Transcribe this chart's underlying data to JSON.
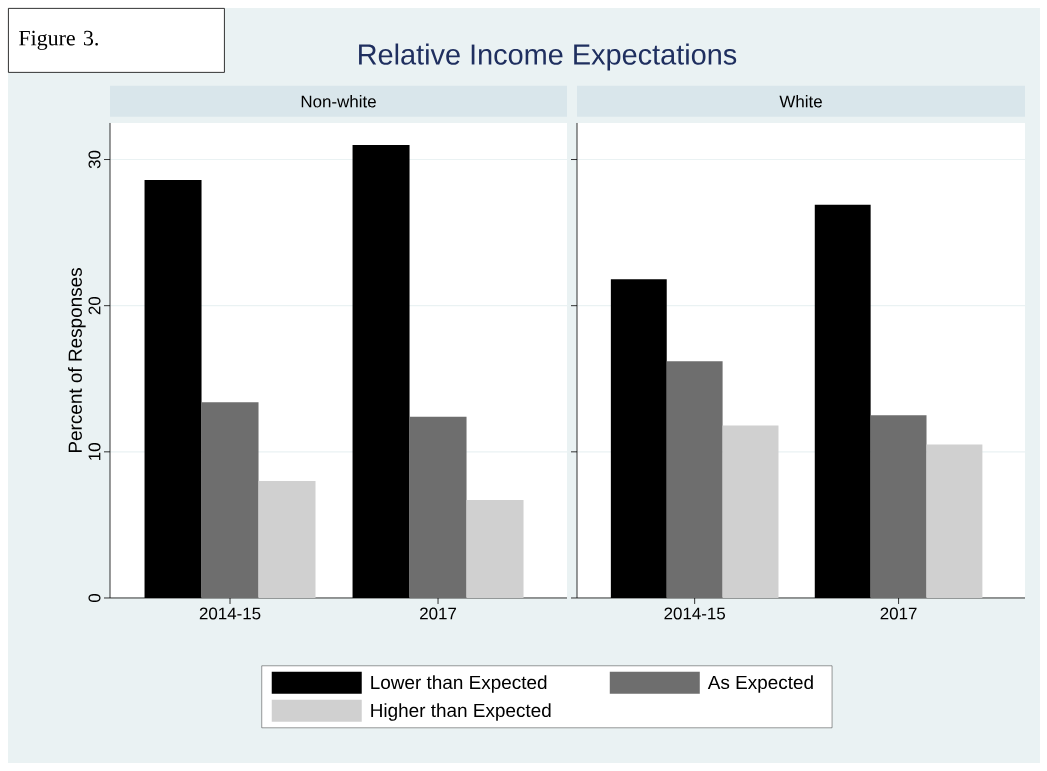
{
  "chart_data": [
    {
      "type": "bar",
      "title": "Relative Income Expectations",
      "subtitle": "Non-white",
      "annotations": [
        "Figure 3."
      ],
      "ylabel": "Percent of Responses",
      "categories": [
        "2014-15",
        "2017"
      ],
      "series": [
        {
          "name": "Lower than Expected",
          "color": "#000000",
          "values": [
            28.6,
            31.0
          ]
        },
        {
          "name": "As Expected",
          "color": "#6e6e6e",
          "values": [
            13.4,
            12.4
          ]
        },
        {
          "name": "Higher than Expected",
          "color": "#d0d0d0",
          "values": [
            8.0,
            6.7
          ]
        }
      ],
      "ylim": [
        0,
        32.5
      ],
      "yticks": [
        0,
        10,
        20,
        30
      ],
      "grid": "y",
      "legend": "bottom"
    },
    {
      "type": "bar",
      "subtitle": "White",
      "categories": [
        "2014-15",
        "2017"
      ],
      "series": [
        {
          "color": "#000000",
          "values": [
            21.8,
            26.9
          ]
        },
        {
          "color": "#6e6e6e",
          "values": [
            16.2,
            12.5
          ]
        },
        {
          "color": "#d0d0d0",
          "values": [
            11.8,
            10.5
          ]
        }
      ],
      "ylim": [
        0,
        32.5
      ],
      "yticks": [
        0,
        10,
        20,
        30
      ],
      "grid": "y",
      "tick_labels": "x"
    }
  ]
}
